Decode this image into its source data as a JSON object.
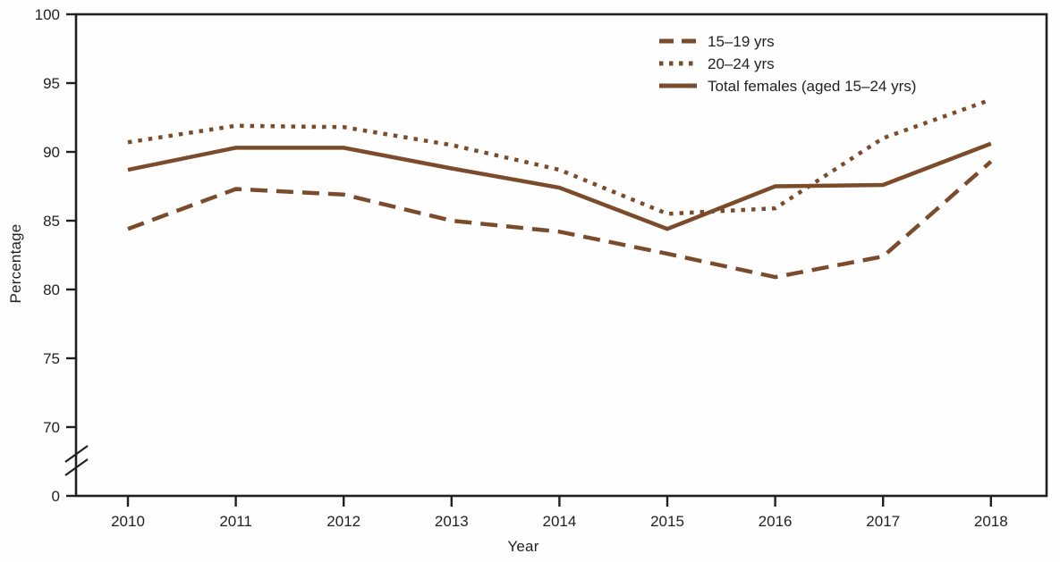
{
  "chart_data": {
    "type": "line",
    "x": [
      2010,
      2011,
      2012,
      2013,
      2014,
      2015,
      2016,
      2017,
      2018
    ],
    "x_tick_labels": [
      "2010",
      "2011",
      "2012",
      "2013",
      "2014",
      "2015",
      "2016",
      "2017",
      "2018"
    ],
    "xlabel": "Year",
    "ylabel": "Percentage",
    "y_tick_values": [
      100,
      95,
      90,
      85,
      80,
      75,
      70
    ],
    "y_tick_labels": [
      "100",
      "95",
      "90",
      "85",
      "80",
      "75",
      "70"
    ],
    "y_zero_label": "0",
    "axis_break": true,
    "ylim": [
      0,
      100
    ],
    "y_visible_range": [
      67,
      100
    ],
    "grid": false,
    "legend_position": "top-center",
    "series": [
      {
        "name": "15–19 yrs",
        "style": "dashed",
        "values": [
          84.4,
          87.3,
          86.9,
          85.0,
          84.2,
          82.6,
          80.9,
          82.4,
          89.3
        ]
      },
      {
        "name": "20–24 yrs",
        "style": "dotted",
        "values": [
          90.7,
          91.9,
          91.8,
          90.5,
          88.7,
          85.5,
          85.9,
          91.0,
          93.8
        ]
      },
      {
        "name": "Total females (aged 15–24 yrs)",
        "style": "solid",
        "values": [
          88.7,
          90.3,
          90.3,
          88.8,
          87.4,
          84.4,
          87.5,
          87.6,
          90.6
        ]
      }
    ],
    "colors": {
      "line": "#7b4c2b",
      "axis": "#231f20",
      "text": "#231f20",
      "background": "#fefefe"
    }
  }
}
